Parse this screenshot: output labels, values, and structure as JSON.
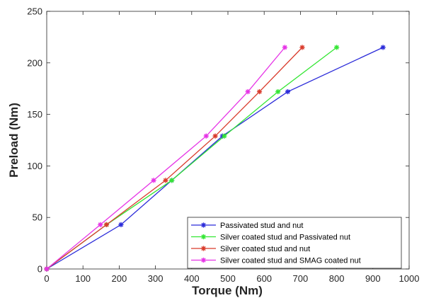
{
  "chart_data": {
    "type": "line",
    "xlabel": "Torque (Nm)",
    "ylabel": "Preload (Nm)",
    "xlim": [
      0,
      1000
    ],
    "ylim": [
      0,
      250
    ],
    "xticks": [
      "0",
      "100",
      "200",
      "300",
      "400",
      "500",
      "600",
      "700",
      "800",
      "900",
      "1000"
    ],
    "yticks": [
      "0",
      "50",
      "100",
      "150",
      "200",
      "250"
    ],
    "grid": false,
    "legend_position": "bottom-right",
    "marker": "asterisk",
    "series": [
      {
        "name": "Passivated stud and nut",
        "color": "#2b2bd9",
        "x": [
          0,
          205,
          345,
          485,
          665,
          928
        ],
        "y": [
          0,
          43,
          86,
          129,
          172,
          215
        ]
      },
      {
        "name": "Silver coated stud and Passivated nut",
        "color": "#33e633",
        "x": [
          0,
          165,
          345,
          490,
          638,
          800
        ],
        "y": [
          0,
          43,
          86,
          129,
          172,
          215
        ]
      },
      {
        "name": "Silver coated stud and nut",
        "color": "#d93a2b",
        "x": [
          0,
          165,
          328,
          465,
          587,
          705
        ],
        "y": [
          0,
          43,
          86,
          129,
          172,
          215
        ]
      },
      {
        "name": "Silver coated stud and SMAG coated nut",
        "color": "#e633e6",
        "x": [
          0,
          148,
          295,
          440,
          555,
          657
        ],
        "y": [
          0,
          43,
          86,
          129,
          172,
          215
        ]
      }
    ]
  }
}
